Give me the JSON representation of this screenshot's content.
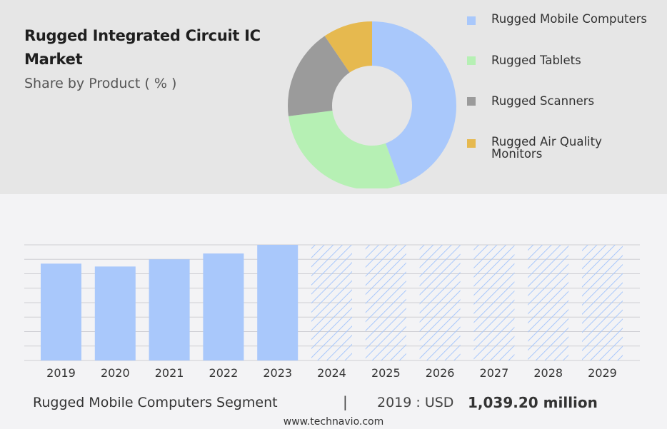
{
  "header": {
    "title": "Rugged Integrated Circuit IC Market",
    "subtitle": "Share by Product ( % )"
  },
  "legend": [
    {
      "label": "Rugged Mobile Computers",
      "color": "#a9c8fb"
    },
    {
      "label": "Rugged Tablets",
      "color": "#b6f0b4"
    },
    {
      "label": "Rugged Scanners",
      "color": "#9b9b9b"
    },
    {
      "label": "Rugged Air Quality Monitors",
      "color": "#e6b94f"
    }
  ],
  "footer": {
    "segment": "Rugged Mobile Computers Segment",
    "separator": "|",
    "year_label": "2019 : USD",
    "value": "1,039.20 million",
    "url": "www.technavio.com"
  },
  "chart_data": [
    {
      "type": "pie",
      "donut": true,
      "title": "Share by Product ( % )",
      "categories": [
        "Rugged Mobile Computers",
        "Rugged Tablets",
        "Rugged Scanners",
        "Rugged Air Quality Monitors"
      ],
      "values": [
        44.5,
        28.5,
        17.5,
        9.5
      ],
      "colors": [
        "#a9c8fb",
        "#b6f0b4",
        "#9b9b9b",
        "#e6b94f"
      ]
    },
    {
      "type": "bar",
      "categories": [
        "2019",
        "2020",
        "2021",
        "2022",
        "2023",
        "2024",
        "2025",
        "2026",
        "2027",
        "2028",
        "2029"
      ],
      "values": [
        67,
        65,
        70,
        74,
        80,
        null,
        null,
        null,
        null,
        null,
        null
      ],
      "forecast": [
        "2024",
        "2025",
        "2026",
        "2027",
        "2028",
        "2029"
      ],
      "ylim": [
        0,
        80
      ],
      "grid": true,
      "colors": {
        "bar": "#a9c8fb",
        "forecast_hatch": "#a9c8fb"
      }
    }
  ]
}
